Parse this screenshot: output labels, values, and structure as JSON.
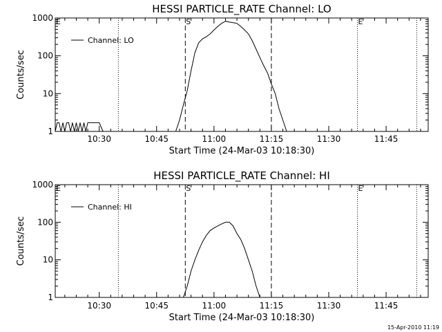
{
  "chart_data": [
    {
      "type": "line",
      "title": "HESSI PARTICLE_RATE Channel: LO",
      "xlabel": "Start Time (24-Mar-03 10:18:30)",
      "ylabel": "Counts/sec",
      "yscale": "log",
      "ylim": [
        1,
        1000
      ],
      "xlim": [
        "10:18:30",
        "11:56:00"
      ],
      "x_ticks": [
        "10:30",
        "10:45",
        "11:00",
        "11:15",
        "11:30",
        "11:45"
      ],
      "y_ticks": [
        "1",
        "10",
        "100",
        "1000"
      ],
      "grid": false,
      "legend": {
        "position": "top-left",
        "entries": [
          "Channel: LO"
        ]
      },
      "markers": [
        {
          "label": "E",
          "time": "10:18:30",
          "style": "dotted"
        },
        {
          "label": "",
          "time": "10:35:00",
          "style": "dotted"
        },
        {
          "label": "S",
          "time": "10:52:30",
          "style": "dashed"
        },
        {
          "label": "",
          "time": "11:15:00",
          "style": "dashed"
        },
        {
          "label": "E",
          "time": "11:37:30",
          "style": "dotted"
        },
        {
          "label": "",
          "time": "11:53:00",
          "style": "dotted"
        }
      ],
      "series": [
        {
          "name": "Channel: LO",
          "segments": [
            {
              "x": [
                "10:18:30",
                "10:19:00",
                "10:19:30",
                "10:20:00",
                "10:20:30",
                "10:21:00",
                "10:21:30",
                "10:22:00",
                "10:22:30",
                "10:23:00",
                "10:23:30",
                "10:24:00",
                "10:24:30",
                "10:25:00",
                "10:25:30",
                "10:26:00",
                "10:26:30",
                "10:27:00",
                "10:28:00",
                "10:30:00",
                "10:31:00"
              ],
              "y": [
                1,
                1.7,
                1.7,
                1,
                1.7,
                1,
                1.7,
                1.7,
                1,
                1.7,
                1,
                1.7,
                1,
                1.7,
                1,
                1.7,
                1,
                1.7,
                1.7,
                1.7,
                1
              ]
            },
            {
              "x": [
                "10:50:00",
                "10:51:00",
                "10:52:00",
                "10:53:00",
                "10:54:00",
                "10:55:00",
                "10:56:00",
                "10:57:00",
                "10:58:00",
                "10:59:00",
                "11:00:00",
                "11:01:00",
                "11:02:00",
                "11:03:00",
                "11:04:00",
                "11:05:00",
                "11:06:00",
                "11:07:00",
                "11:08:00",
                "11:09:00",
                "11:10:00",
                "11:11:00",
                "11:12:00",
                "11:13:00",
                "11:14:00",
                "11:15:00",
                "11:16:00",
                "11:17:00",
                "11:18:00",
                "11:19:00"
              ],
              "y": [
                1,
                2,
                5,
                12,
                40,
                120,
                220,
                280,
                320,
                380,
                480,
                600,
                720,
                820,
                780,
                750,
                720,
                600,
                480,
                380,
                250,
                150,
                90,
                55,
                35,
                18,
                10,
                4,
                2,
                1
              ]
            }
          ]
        }
      ]
    },
    {
      "type": "line",
      "title": "HESSI PARTICLE_RATE Channel: HI",
      "xlabel": "Start Time (24-Mar-03 10:18:30)",
      "ylabel": "Counts/sec",
      "yscale": "log",
      "ylim": [
        1,
        1000
      ],
      "xlim": [
        "10:18:30",
        "11:56:00"
      ],
      "x_ticks": [
        "10:30",
        "10:45",
        "11:00",
        "11:15",
        "11:30",
        "11:45"
      ],
      "y_ticks": [
        "1",
        "10",
        "100",
        "1000"
      ],
      "grid": false,
      "legend": {
        "position": "top-left",
        "entries": [
          "Channel: HI"
        ]
      },
      "markers": [
        {
          "label": "E",
          "time": "10:18:30",
          "style": "dotted"
        },
        {
          "label": "",
          "time": "10:35:00",
          "style": "dotted"
        },
        {
          "label": "S",
          "time": "10:52:30",
          "style": "dashed"
        },
        {
          "label": "",
          "time": "11:15:00",
          "style": "dashed"
        },
        {
          "label": "E",
          "time": "11:37:30",
          "style": "dotted"
        },
        {
          "label": "",
          "time": "11:53:00",
          "style": "dotted"
        }
      ],
      "series": [
        {
          "name": "Channel: HI",
          "segments": [
            {
              "x": [
                "10:52:00",
                "10:53:00",
                "10:54:00",
                "10:55:00",
                "10:56:00",
                "10:57:00",
                "10:58:00",
                "10:59:00",
                "11:00:00",
                "11:01:00",
                "11:02:00",
                "11:03:00",
                "11:04:00",
                "11:05:00",
                "11:06:00",
                "11:07:00",
                "11:08:00",
                "11:09:00",
                "11:10:00",
                "11:11:00",
                "11:12:00"
              ],
              "y": [
                1,
                2,
                5,
                10,
                18,
                30,
                45,
                60,
                70,
                80,
                90,
                100,
                100,
                80,
                50,
                35,
                20,
                10,
                5,
                2,
                1
              ]
            }
          ]
        }
      ]
    }
  ],
  "timestamp": "15-Apr-2010 11:19"
}
